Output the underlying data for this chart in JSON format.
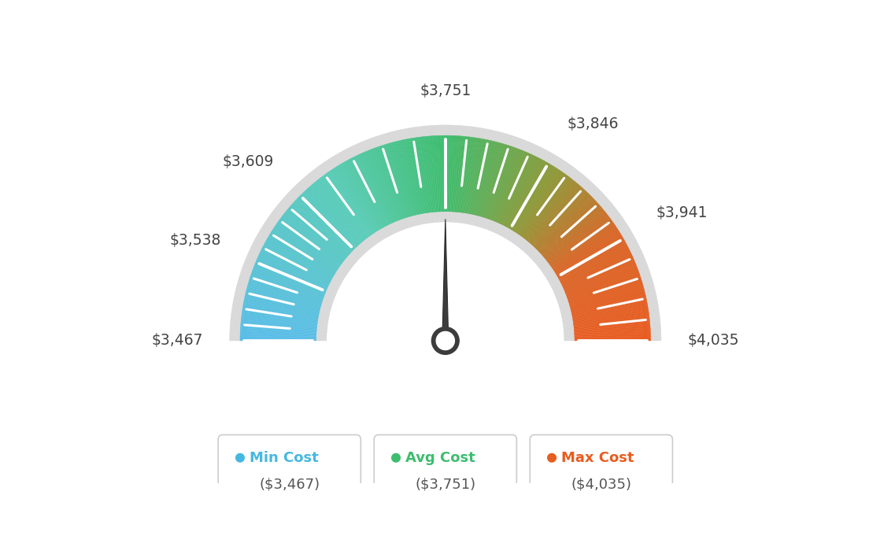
{
  "min_value": 3467,
  "avg_value": 3751,
  "max_value": 4035,
  "tick_labels": [
    "$3,467",
    "$3,538",
    "$3,609",
    "$3,751",
    "$3,846",
    "$3,941",
    "$4,035"
  ],
  "tick_values": [
    3467,
    3538,
    3609,
    3751,
    3846,
    3941,
    4035
  ],
  "legend_items": [
    {
      "label": "Min Cost",
      "value": "($3,467)",
      "color": "#45b8e0"
    },
    {
      "label": "Avg Cost",
      "value": "($3,751)",
      "color": "#3dbd6e"
    },
    {
      "label": "Max Cost",
      "value": "($4,035)",
      "color": "#e85d20"
    }
  ],
  "background_color": "#ffffff",
  "needle_value": 3751,
  "color_stops": [
    [
      0.0,
      [
        0.35,
        0.74,
        0.91
      ]
    ],
    [
      0.3,
      [
        0.35,
        0.8,
        0.72
      ]
    ],
    [
      0.5,
      [
        0.24,
        0.74,
        0.43
      ]
    ],
    [
      0.68,
      [
        0.55,
        0.6,
        0.22
      ]
    ],
    [
      0.82,
      [
        0.85,
        0.4,
        0.15
      ]
    ],
    [
      1.0,
      [
        0.91,
        0.36,
        0.13
      ]
    ]
  ]
}
